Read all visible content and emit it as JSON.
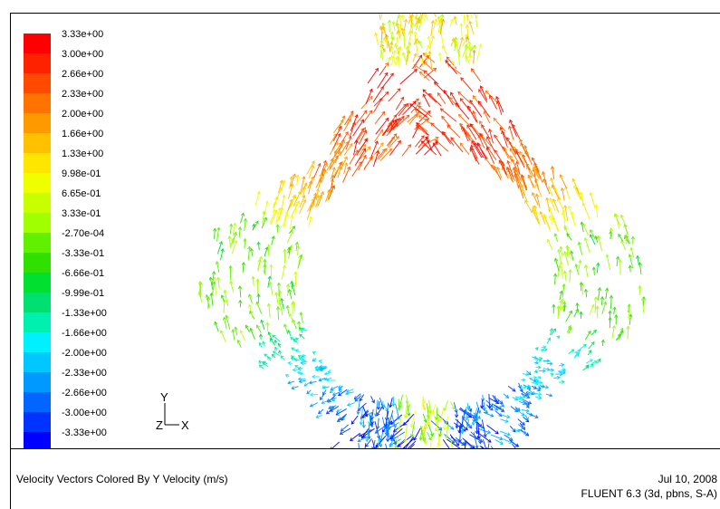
{
  "chart_data": {
    "type": "vector-field",
    "title": "Velocity Vectors Colored By Y Velocity (m/s)",
    "colorbar": {
      "levels": [
        "3.33e+00",
        "3.00e+00",
        "2.66e+00",
        "2.33e+00",
        "2.00e+00",
        "1.66e+00",
        "1.33e+00",
        "9.98e-01",
        "6.65e-01",
        "3.33e-01",
        "-2.70e-04",
        "-3.33e-01",
        "-6.66e-01",
        "-9.99e-01",
        "-1.33e+00",
        "-1.66e+00",
        "-2.00e+00",
        "-2.33e+00",
        "-2.66e+00",
        "-3.00e+00",
        "-3.33e+00"
      ],
      "min": -3.33,
      "max": 3.33,
      "colors": [
        "#ff0000",
        "#ff2200",
        "#ff4a00",
        "#ff7300",
        "#ff9900",
        "#ffc000",
        "#ffe600",
        "#f0ff00",
        "#c8ff00",
        "#a0ff00",
        "#60f000",
        "#30e000",
        "#00e030",
        "#00e070",
        "#00f0b0",
        "#00f0ff",
        "#00c8ff",
        "#0099ff",
        "#0066ff",
        "#0033ff",
        "#0000ff"
      ]
    },
    "axes": {
      "vertical": "Y",
      "horizontal": "X"
    }
  },
  "footer": {
    "title": "Velocity Vectors Colored By Y Velocity (m/s)",
    "date": "Jul 10, 2008",
    "app": "FLUENT 6.3 (3d, pbns, S-A)"
  }
}
